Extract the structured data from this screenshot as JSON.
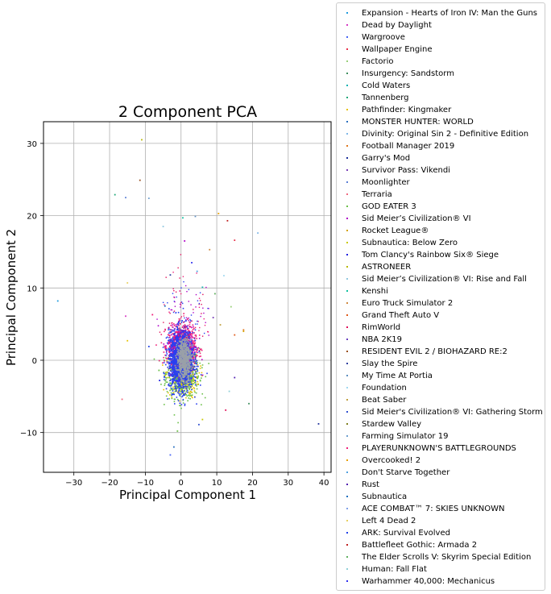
{
  "chart_data": {
    "type": "scatter",
    "title": "2 Component PCA",
    "xlabel": "Principal Component 1",
    "ylabel": "Principal Component 2",
    "xlim": [
      -38.5,
      42
    ],
    "ylim": [
      -15.5,
      33
    ],
    "xticks": [
      -30,
      -20,
      -10,
      0,
      10,
      20,
      30,
      40
    ],
    "yticks": [
      -10,
      0,
      10,
      20,
      30
    ],
    "grid": true,
    "legend_placement": "outside-right",
    "series": [
      {
        "name": "Expansion - Hearts of Iron IV: Man the Guns",
        "color": "#1f9bde"
      },
      {
        "name": "Dead by Daylight",
        "color": "#d63ac4"
      },
      {
        "name": "Wargroove",
        "color": "#4664f5"
      },
      {
        "name": "Wallpaper Engine",
        "color": "#e8304a"
      },
      {
        "name": "Factorio",
        "color": "#9ad07a"
      },
      {
        "name": "Insurgency: Sandstorm",
        "color": "#3f8f5f"
      },
      {
        "name": "Cold Waters",
        "color": "#18b3b3"
      },
      {
        "name": "Tannenberg",
        "color": "#20a878"
      },
      {
        "name": "Pathfinder: Kingmaker",
        "color": "#e6c200"
      },
      {
        "name": "MONSTER HUNTER: WORLD",
        "color": "#2a6fbf"
      },
      {
        "name": "Divinity: Original Sin 2 - Definitive Edition",
        "color": "#7fb7e8"
      },
      {
        "name": "Football Manager 2019",
        "color": "#e0781e"
      },
      {
        "name": "Garry's Mod",
        "color": "#1c2f9a"
      },
      {
        "name": "Survivor Pass: Vikendi",
        "color": "#7a3fb8"
      },
      {
        "name": "Moonlighter",
        "color": "#5b7fd6"
      },
      {
        "name": "Terraria",
        "color": "#f06a80"
      },
      {
        "name": "GOD EATER 3",
        "color": "#6cc04a"
      },
      {
        "name": "Sid Meier’s Civilization® VI",
        "color": "#b000c8"
      },
      {
        "name": "Rocket League®",
        "color": "#d4a300"
      },
      {
        "name": "Subnautica: Below Zero",
        "color": "#c8c800"
      },
      {
        "name": "Tom Clancy's Rainbow Six® Siege",
        "color": "#2020e0"
      },
      {
        "name": "ASTRONEER",
        "color": "#b8b800"
      },
      {
        "name": "Sid Meier’s Civilization® VI: Rise and Fall",
        "color": "#90c8e0"
      },
      {
        "name": "Kenshi",
        "color": "#10c0a0"
      },
      {
        "name": "Euro Truck Simulator 2",
        "color": "#d08a40"
      },
      {
        "name": "Grand Theft Auto V",
        "color": "#e05a1a"
      },
      {
        "name": "RimWorld",
        "color": "#e0105a"
      },
      {
        "name": "NBA 2K19",
        "color": "#6a40c0"
      },
      {
        "name": "RESIDENT EVIL 2 / BIOHAZARD RE:2",
        "color": "#9a5020"
      },
      {
        "name": "Slay the Spire",
        "color": "#3040a0"
      },
      {
        "name": "My Time At Portia",
        "color": "#6090c0"
      },
      {
        "name": "Foundation",
        "color": "#a0d8f0"
      },
      {
        "name": "Beat Saber",
        "color": "#c0a040"
      },
      {
        "name": "Sid Meier's Civilization® VI: Gathering Storm",
        "color": "#3050d0"
      },
      {
        "name": "Stardew Valley",
        "color": "#808020"
      },
      {
        "name": "Farming Simulator 19",
        "color": "#70a0d0"
      },
      {
        "name": "PLAYERUNKNOWN'S BATTLEGROUNDS",
        "color": "#f0207a"
      },
      {
        "name": "Overcooked! 2",
        "color": "#e8a000"
      },
      {
        "name": "Don't Starve Together",
        "color": "#50a0e0"
      },
      {
        "name": "Rust",
        "color": "#5020b0"
      },
      {
        "name": "Subnautica",
        "color": "#2070c0"
      },
      {
        "name": "ACE COMBAT™ 7: SKIES UNKNOWN",
        "color": "#80a0e8"
      },
      {
        "name": "Left 4 Dead 2",
        "color": "#e8d060"
      },
      {
        "name": "ARK: Survival Evolved",
        "color": "#2040e8"
      },
      {
        "name": "Battlefleet Gothic: Armada 2",
        "color": "#c02020"
      },
      {
        "name": "The Elder Scrolls V: Skyrim Special Edition",
        "color": "#60b060"
      },
      {
        "name": "Human: Fall Flat",
        "color": "#90d0d8"
      },
      {
        "name": "Warhammer 40,000: Mechanicus",
        "color": "#3030f0"
      }
    ],
    "outlier_points": [
      [
        -34.5,
        8.2
      ],
      [
        -18.5,
        22.9
      ],
      [
        -15.5,
        22.5
      ],
      [
        -11,
        30.5
      ],
      [
        -11.5,
        24.9
      ],
      [
        -9,
        22.4
      ],
      [
        -15,
        10.7
      ],
      [
        -15.5,
        6.1
      ],
      [
        -15,
        2.7
      ],
      [
        -16.5,
        -5.4
      ],
      [
        -5,
        18.5
      ],
      [
        -3,
        11.8
      ],
      [
        -8,
        6.3
      ],
      [
        -9,
        1.9
      ],
      [
        -3,
        -13.1
      ],
      [
        -2,
        -12
      ],
      [
        -1,
        -9.8
      ],
      [
        0.5,
        19.7
      ],
      [
        4,
        19.9
      ],
      [
        10.5,
        20.3
      ],
      [
        13,
        19.3
      ],
      [
        15,
        16.6
      ],
      [
        21.5,
        17.6
      ],
      [
        1,
        16.5
      ],
      [
        8,
        15.3
      ],
      [
        12,
        11.7
      ],
      [
        4.5,
        12.3
      ],
      [
        9.5,
        9.2
      ],
      [
        14,
        7.4
      ],
      [
        17.5,
        4.2
      ],
      [
        17.5,
        4.0
      ],
      [
        15,
        3.5
      ],
      [
        11,
        4.9
      ],
      [
        15,
        -2.4
      ],
      [
        13.5,
        -4.3
      ],
      [
        19,
        -6.0
      ],
      [
        38.5,
        -8.8
      ],
      [
        6,
        -8.2
      ],
      [
        12.5,
        -6.9
      ],
      [
        5,
        -8.9
      ],
      [
        -4.5,
        7.5
      ],
      [
        3,
        13.5
      ],
      [
        6,
        10.1
      ],
      [
        9,
        5.9
      ],
      [
        -6,
        -2.8
      ]
    ]
  }
}
